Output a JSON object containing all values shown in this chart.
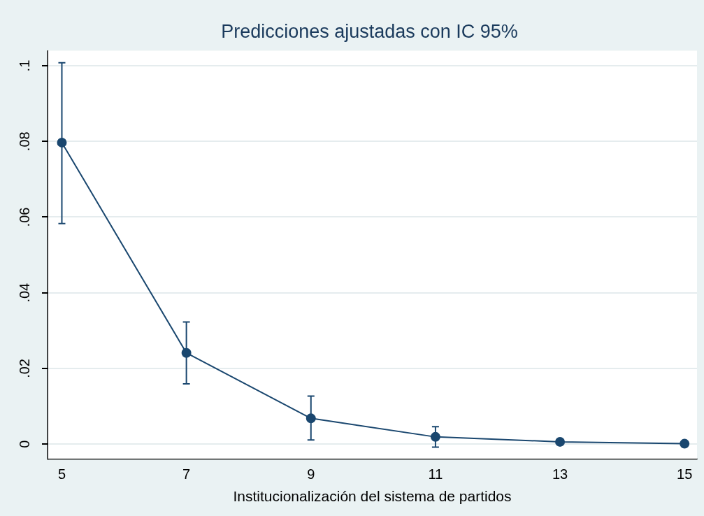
{
  "chart_data": {
    "type": "line",
    "title": "Predicciones ajustadas con IC 95%",
    "xlabel": "Institucionalización del sistema de partidos",
    "x": [
      5,
      7,
      9,
      11,
      13,
      15
    ],
    "series": [
      {
        "color": "#1a476f",
        "values": [
          0.0797,
          0.0241,
          0.0068,
          0.0019,
          0.0006,
          0.0001
        ],
        "errors": [
          [
            0.0583,
            0.1008
          ],
          [
            0.0159,
            0.0323
          ],
          [
            0.0011,
            0.0127
          ],
          [
            -0.0008,
            0.0046
          ],
          [
            -0.0002,
            0.0011
          ],
          null
        ]
      }
    ],
    "xlim": [
      4.77,
      15.2
    ],
    "xticks": [
      5,
      7,
      9,
      11,
      13,
      15
    ],
    "ylim": [
      -0.004,
      0.104
    ],
    "yticks": [
      0,
      {
        "value": 0.02,
        "label": ".02"
      },
      {
        "value": 0.04,
        "label": ".04"
      },
      {
        "value": 0.06,
        "label": ".06"
      },
      {
        "value": 0.08,
        "label": ".08"
      },
      {
        "value": 0.1,
        "label": ".1"
      }
    ],
    "grid": "y",
    "legend": false,
    "marker": "circle",
    "line_style": "solid"
  }
}
